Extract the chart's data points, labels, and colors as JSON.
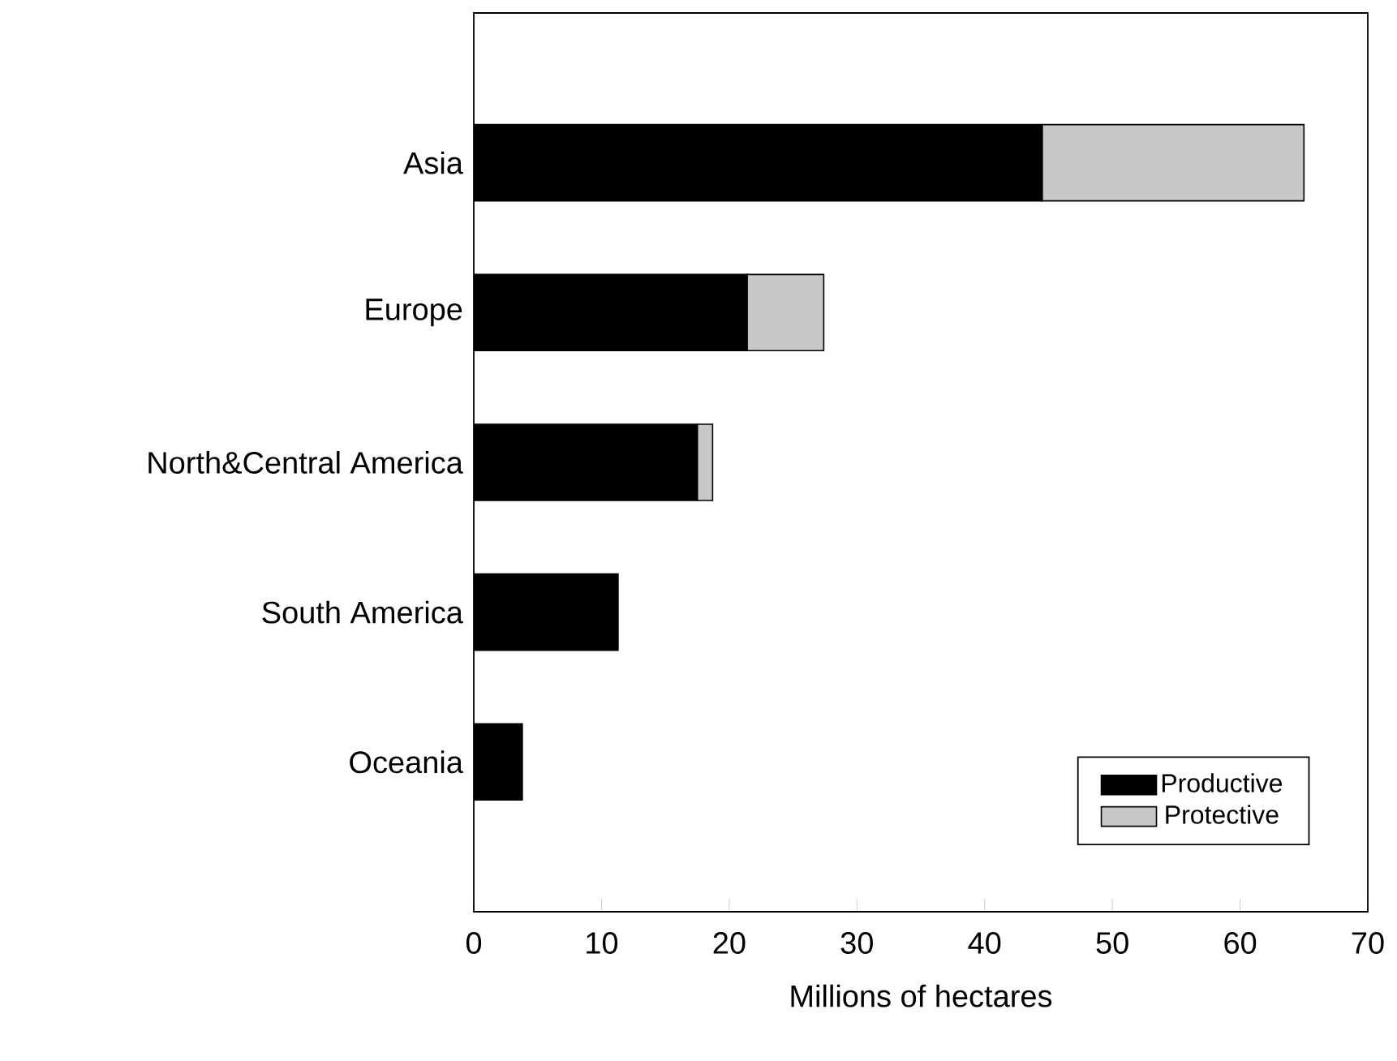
{
  "chart_data": {
    "type": "bar",
    "orientation": "horizontal",
    "stacked": true,
    "xlabel": "Millions of hectares",
    "categories": [
      "Asia",
      "Europe",
      "North&Central America",
      "South America",
      "Oceania"
    ],
    "series": [
      {
        "name": "Productive",
        "color": "#000000",
        "values": [
          44.5,
          21.4,
          17.5,
          11.3,
          3.8
        ]
      },
      {
        "name": "Protective",
        "color": "#c8c8c8",
        "values": [
          20.5,
          6.0,
          1.2,
          null,
          null
        ]
      }
    ],
    "xlim": [
      0,
      70
    ],
    "xticks": [
      0,
      10,
      20,
      30,
      40,
      50,
      60,
      70
    ],
    "grid": false,
    "legend": "bottom right"
  }
}
